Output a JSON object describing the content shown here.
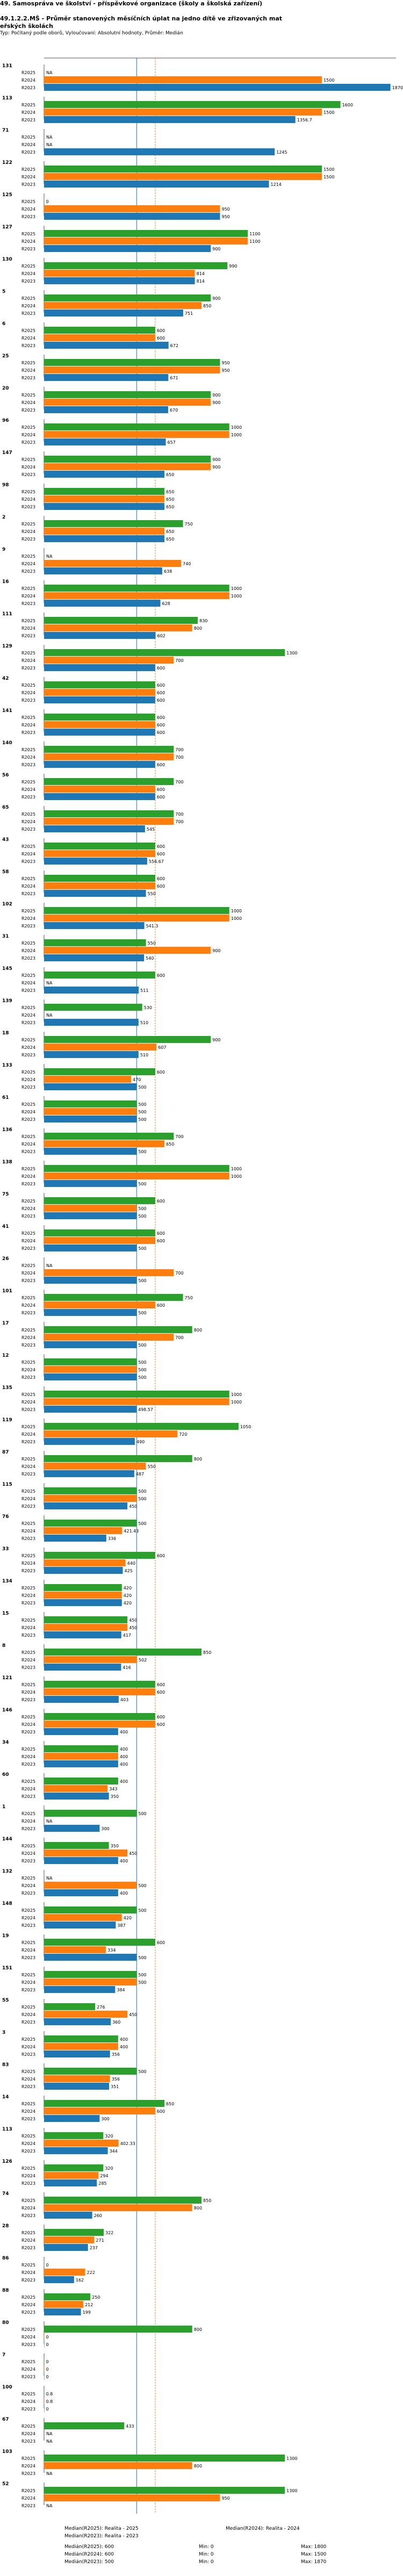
{
  "title_lines": [
    "49. Samospráva ve školství - příspěvkové organizace (školy a školská zařízení)",
    "49.1.2.2.MŠ - Průměr stanovených měsíčních úplat na jedno dítě ve zřizovaných mat",
    "eřských školách"
  ],
  "subtitle": "Typ: Počítaný podle oborů, Vyloučovaní: Absolutní hodnoty, Průměr: Medián",
  "legend": {
    "items": [
      {
        "label": "Median(R2025): Realita - 2025",
        "color": "#2ca02c"
      },
      {
        "label": "Median(R2024): Realita - 2024",
        "color": "#ff7f0e"
      },
      {
        "label": "Median(R2023): Realita - 2023",
        "color": "#1f77b4"
      }
    ],
    "stats": [
      "Medián(R2025): 600",
      "Medián(R2024): 600",
      "Medián(R2023): 500",
      "Min: 0",
      "Min: 0",
      "Min: 0",
      "Max: 1800",
      "Max: 1500",
      "Max: 1870"
    ]
  },
  "colors": {
    "R2025": "#2ca02c",
    "R2024": "#ff7f0e",
    "R2023": "#1f77b4",
    "axis": "#555555",
    "median_line": "#1f77b4",
    "median_line2": "#ff7f0e"
  },
  "chart_data": {
    "type": "bar",
    "orientation": "horizontal",
    "title": "49.1.2.2.MŠ - Průměr stanovených měsíčních úplat na jedno dítě ve zřizovaných mateřských školách",
    "series_labels": [
      "R2025",
      "R2024",
      "R2023"
    ],
    "xlim": [
      0,
      1900
    ],
    "median_lines": [
      500,
      600
    ],
    "groups": [
      {
        "id": "131",
        "values": [
          null,
          1500,
          1870
        ]
      },
      {
        "id": "113",
        "values": [
          1600,
          1500,
          1356.7
        ]
      },
      {
        "id": "71",
        "values": [
          null,
          null,
          1245
        ]
      },
      {
        "id": "122",
        "values": [
          1500,
          1500,
          1214
        ]
      },
      {
        "id": "125",
        "values": [
          0,
          950,
          950
        ]
      },
      {
        "id": "127",
        "values": [
          1100,
          1100,
          900
        ]
      },
      {
        "id": "130",
        "values": [
          990,
          814,
          814
        ]
      },
      {
        "id": "5",
        "values": [
          900,
          850,
          751
        ]
      },
      {
        "id": "6",
        "values": [
          600,
          600,
          672
        ]
      },
      {
        "id": "25",
        "values": [
          950,
          950,
          671
        ]
      },
      {
        "id": "20",
        "values": [
          900,
          900,
          670
        ]
      },
      {
        "id": "96",
        "values": [
          1000,
          1000,
          657
        ]
      },
      {
        "id": "147",
        "values": [
          900,
          900,
          650
        ]
      },
      {
        "id": "98",
        "values": [
          650,
          650,
          650
        ]
      },
      {
        "id": "2",
        "values": [
          750,
          650,
          650
        ]
      },
      {
        "id": "9",
        "values": [
          null,
          740,
          638
        ]
      },
      {
        "id": "16",
        "values": [
          1000,
          1000,
          628
        ]
      },
      {
        "id": "111",
        "values": [
          830,
          800,
          602
        ]
      },
      {
        "id": "129",
        "values": [
          1300,
          700,
          600
        ]
      },
      {
        "id": "42",
        "values": [
          600,
          600,
          600
        ]
      },
      {
        "id": "141",
        "values": [
          600,
          600,
          600
        ]
      },
      {
        "id": "140",
        "values": [
          700,
          700,
          600
        ]
      },
      {
        "id": "56",
        "values": [
          700,
          600,
          600
        ]
      },
      {
        "id": "65",
        "values": [
          700,
          700,
          545
        ]
      },
      {
        "id": "43",
        "values": [
          600,
          600,
          556.67
        ]
      },
      {
        "id": "58",
        "values": [
          600,
          600,
          550
        ]
      },
      {
        "id": "102",
        "values": [
          1000,
          1000,
          541.3
        ]
      },
      {
        "id": "31",
        "values": [
          550,
          900,
          540
        ]
      },
      {
        "id": "145",
        "values": [
          600,
          null,
          511
        ]
      },
      {
        "id": "139",
        "values": [
          530,
          null,
          510
        ]
      },
      {
        "id": "18",
        "values": [
          900,
          607,
          510
        ]
      },
      {
        "id": "133",
        "values": [
          600,
          470,
          500
        ]
      },
      {
        "id": "61",
        "values": [
          500,
          500,
          500
        ]
      },
      {
        "id": "136",
        "values": [
          700,
          650,
          500
        ]
      },
      {
        "id": "138",
        "values": [
          1000,
          1000,
          500
        ]
      },
      {
        "id": "75",
        "values": [
          600,
          500,
          500
        ]
      },
      {
        "id": "41",
        "values": [
          600,
          600,
          500
        ]
      },
      {
        "id": "26",
        "values": [
          null,
          700,
          500
        ]
      },
      {
        "id": "101",
        "values": [
          750,
          600,
          500
        ]
      },
      {
        "id": "17",
        "values": [
          800,
          700,
          500
        ]
      },
      {
        "id": "12",
        "values": [
          500,
          500,
          500
        ]
      },
      {
        "id": "135",
        "values": [
          1000,
          1000,
          498.57
        ]
      },
      {
        "id": "119",
        "values": [
          1050,
          720,
          490
        ]
      },
      {
        "id": "87",
        "values": [
          800,
          550,
          487
        ]
      },
      {
        "id": "115",
        "values": [
          500,
          500,
          450
        ]
      },
      {
        "id": "76",
        "values": [
          500,
          421.43,
          336
        ]
      },
      {
        "id": "33",
        "values": [
          600,
          440,
          425
        ]
      },
      {
        "id": "134",
        "values": [
          420,
          420,
          420
        ]
      },
      {
        "id": "15",
        "values": [
          450,
          450,
          417
        ]
      },
      {
        "id": "8",
        "values": [
          850,
          502,
          416
        ]
      },
      {
        "id": "121",
        "values": [
          600,
          600,
          403
        ]
      },
      {
        "id": "146",
        "values": [
          600,
          600,
          400
        ]
      },
      {
        "id": "34",
        "values": [
          400,
          400,
          400
        ]
      },
      {
        "id": "60",
        "values": [
          400,
          343,
          350
        ]
      },
      {
        "id": "1",
        "values": [
          500,
          null,
          300
        ]
      },
      {
        "id": "144",
        "values": [
          350,
          450,
          400
        ]
      },
      {
        "id": "132",
        "values": [
          null,
          500,
          400
        ]
      },
      {
        "id": "148",
        "values": [
          500,
          420,
          387
        ]
      },
      {
        "id": "19",
        "values": [
          600,
          334,
          500
        ]
      },
      {
        "id": "151",
        "values": [
          500,
          500,
          384
        ]
      },
      {
        "id": "55",
        "values": [
          276,
          450,
          360
        ]
      },
      {
        "id": "3",
        "values": [
          400,
          400,
          356
        ]
      },
      {
        "id": "83",
        "values": [
          500,
          356,
          351
        ]
      },
      {
        "id": "14",
        "values": [
          650,
          600,
          300
        ]
      },
      {
        "id": "113b",
        "label": "113",
        "values": [
          320,
          402.33,
          344
        ]
      },
      {
        "id": "126",
        "values": [
          320,
          294,
          285
        ]
      },
      {
        "id": "74",
        "values": [
          850,
          800,
          260
        ]
      },
      {
        "id": "28",
        "values": [
          322,
          271,
          237
        ]
      },
      {
        "id": "86",
        "values": [
          0,
          222,
          162
        ]
      },
      {
        "id": "88",
        "values": [
          250,
          212,
          199
        ]
      },
      {
        "id": "80",
        "values": [
          800,
          0,
          0
        ]
      },
      {
        "id": "7",
        "values": [
          0,
          0,
          0
        ]
      },
      {
        "id": "100",
        "values": [
          0.8,
          0.8,
          0
        ]
      },
      {
        "id": "67",
        "values": [
          433,
          null,
          null
        ]
      },
      {
        "id": "103",
        "values": [
          1300,
          800,
          null
        ]
      },
      {
        "id": "52",
        "values": [
          1300,
          950,
          null
        ]
      }
    ]
  }
}
